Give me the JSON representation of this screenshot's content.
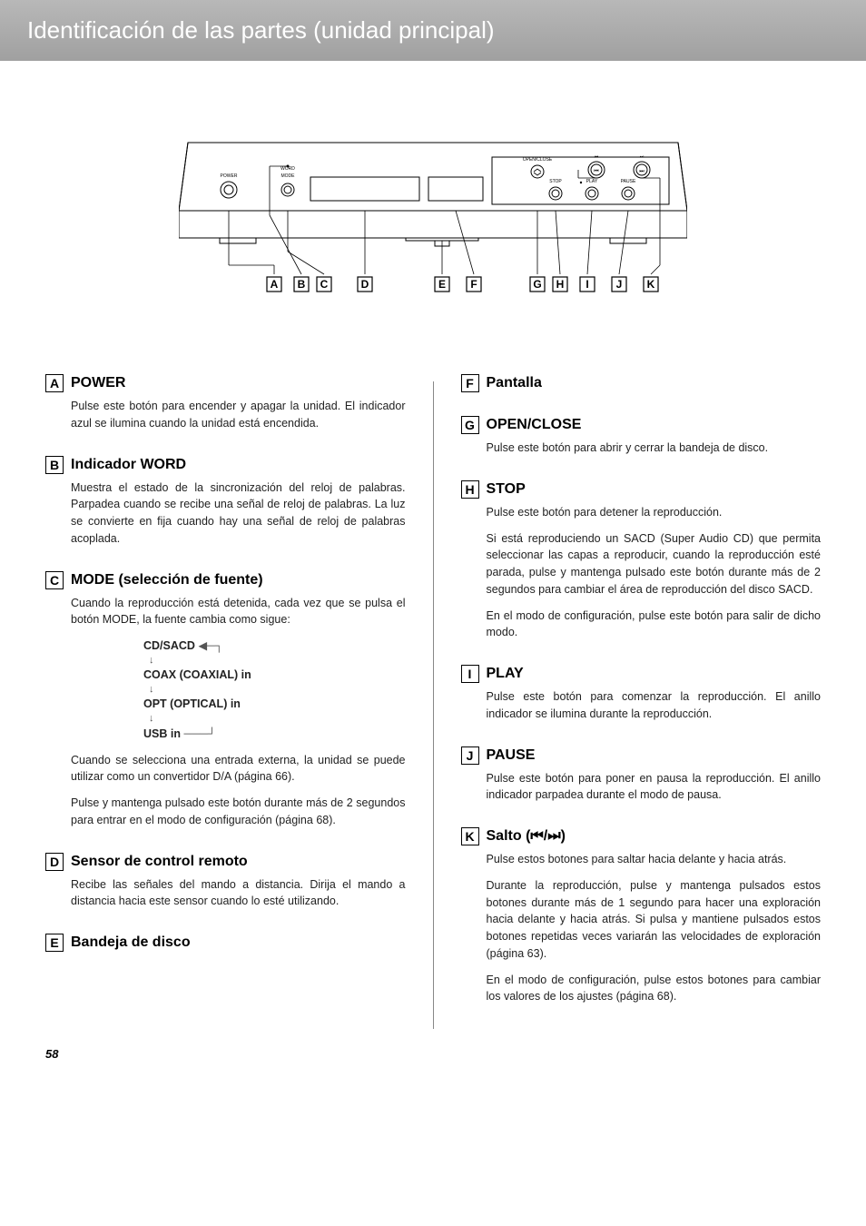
{
  "header_title": "Identificación de las partes (unidad principal)",
  "page_number": "58",
  "device_labels": {
    "power": "POWER",
    "mode": "MODE",
    "open_close": "OPEN/CLOSE",
    "stop": "STOP",
    "play": "PLAY",
    "pause": "PAUSE",
    "skip_back": "⏮",
    "skip_fwd": "⏭"
  },
  "diagram_letters": [
    "A",
    "B",
    "C",
    "D",
    "E",
    "F",
    "G",
    "H",
    "I",
    "J",
    "K"
  ],
  "sections": {
    "A": {
      "title": "POWER",
      "paras": [
        "Pulse este botón para encender y apagar la unidad.\nEl indicador azul se ilumina cuando la unidad está encendida."
      ]
    },
    "B": {
      "title": "Indicador WORD",
      "paras": [
        "Muestra el estado de la sincronización del reloj de palabras. Parpadea cuando se recibe una señal de reloj de palabras. La luz se convierte en fija cuando hay una señal de reloj de palabras acoplada."
      ]
    },
    "C": {
      "title": "MODE (selección de fuente)",
      "paras_before": [
        "Cuando la reproducción está detenida, cada vez que se pulsa el botón MODE, la fuente cambia como sigue:"
      ],
      "chain": [
        "CD/SACD",
        "COAX (COAXIAL) in",
        "OPT (OPTICAL) in",
        "USB in"
      ],
      "paras_after": [
        "Cuando se selecciona una entrada externa, la unidad se puede utilizar como un convertidor D/A (página 66).",
        "Pulse y mantenga pulsado este botón durante más de 2 segundos para entrar en el modo de configuración (página 68)."
      ]
    },
    "D": {
      "title": "Sensor de control remoto",
      "paras": [
        "Recibe las señales del mando a distancia. Dirija el mando a distancia hacia este sensor cuando lo esté utilizando."
      ]
    },
    "E": {
      "title": "Bandeja de disco",
      "paras": []
    },
    "F": {
      "title": "Pantalla",
      "paras": []
    },
    "G": {
      "title": "OPEN/CLOSE",
      "paras": [
        "Pulse este botón para abrir y cerrar la bandeja de disco."
      ]
    },
    "H": {
      "title": "STOP",
      "paras": [
        "Pulse este botón para detener la reproducción.",
        "Si está reproduciendo un SACD (Super Audio CD) que permita seleccionar las capas a reproducir, cuando la reproducción esté parada, pulse y mantenga pulsado este botón durante más de 2 segundos para cambiar el área de reproducción del disco SACD.",
        "En el modo de configuración, pulse este botón para salir de dicho modo."
      ]
    },
    "I": {
      "title": "PLAY",
      "paras": [
        "Pulse este botón para comenzar la reproducción.\nEl anillo indicador se ilumina durante la reproducción."
      ]
    },
    "J": {
      "title": "PAUSE",
      "paras": [
        "Pulse este botón para poner en pausa la reproducción.\nEl anillo indicador parpadea durante el modo de pausa."
      ]
    },
    "K": {
      "title": "Salto (⏮/⏭)",
      "paras": [
        "Pulse estos botones para saltar hacia delante y hacia atrás.",
        "Durante la reproducción, pulse y mantenga pulsados estos botones durante más de 1 segundo para hacer una exploración hacia delante y hacia atrás.\nSi pulsa y mantiene pulsados estos botones repetidas veces variarán las velocidades de exploración (página 63).",
        "En el modo de configuración, pulse estos botones para cambiar los valores de los ajustes  (página 68)."
      ]
    }
  },
  "colors": {
    "header_top": "#b8b8b8",
    "header_bottom": "#a0a0a0",
    "text": "#222222",
    "divider": "#888888"
  }
}
